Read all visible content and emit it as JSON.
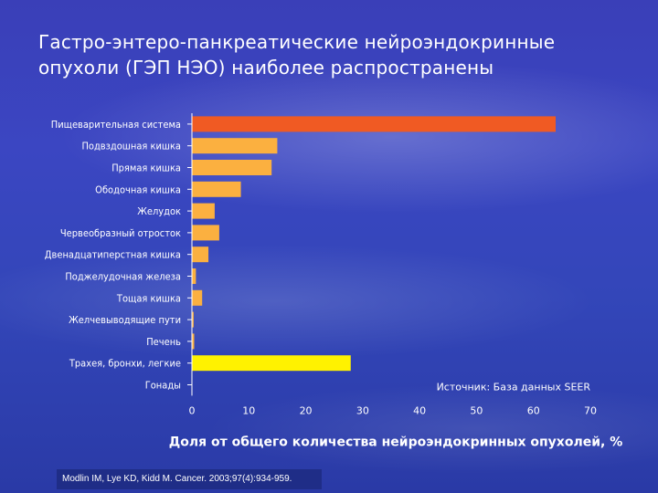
{
  "slide": {
    "title_line1": "Гастро-энтеро-панкреатические нейроэндокринные",
    "title_line2": "опухоли (ГЭП НЭО) наиболее распространены",
    "citation": "Modlin IM, Lye KD, Kidd M. Cancer. 2003;97(4):934-959."
  },
  "chart_data": {
    "type": "bar",
    "orientation": "horizontal",
    "categories": [
      "Пищеварительная система",
      "Подвздошная кишка",
      "Прямая кишка",
      "Ободочная кишка",
      "Желудок",
      "Червеобразный отросток",
      "Двенадцатиперстная кишка",
      "Поджелудочная железа",
      "Тощая кишка",
      "Желчевыводящие пути",
      "Печень",
      "Трахея, бронхи, легкие",
      "Гонады"
    ],
    "values": [
      63.9,
      15.0,
      14.0,
      8.6,
      4.0,
      4.8,
      2.9,
      0.7,
      1.8,
      0.3,
      0.4,
      27.9,
      0.0
    ],
    "xlabel": "Доля от общего количества нейроэндокринных опухолей, %",
    "ylabel": "",
    "xlim": [
      0,
      70
    ],
    "xticks": [
      0,
      10,
      20,
      30,
      40,
      50,
      60,
      70
    ],
    "annotation": "Источник: База данных SEER",
    "colors": {
      "highlight": "#f05a23",
      "default": "#fbb040",
      "lungs": "#fff200"
    },
    "grid": false
  }
}
